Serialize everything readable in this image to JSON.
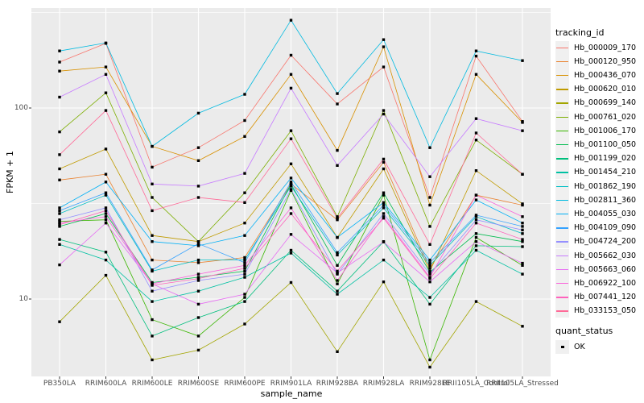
{
  "legend": {
    "tracking_title": "tracking_id",
    "quant_title": "quant_status",
    "quant_value": "OK"
  },
  "colors": {
    "panel_bg": "#ebebeb",
    "grid": "#ffffff",
    "marker": "#000000",
    "tick_text": "#4d4d4d"
  },
  "chart_data": {
    "type": "line",
    "title": "",
    "xlabel": "sample_name",
    "ylabel": "FPKM + 1",
    "y_scale": "log10",
    "y_ticks": [
      {
        "label": "100",
        "value": 100
      },
      {
        "label": "10",
        "value": 10
      }
    ],
    "y_minor_gridlines": [
      316,
      31.6
    ],
    "ylim_log": [
      4.2,
      320
    ],
    "grid": "on",
    "legend_position": "right",
    "point_shape": "filled-black-square",
    "categories": [
      "PB350LA",
      "RRIM600LA",
      "RRIM600LE",
      "RRIM600SE",
      "RRIM600PE",
      "RRIM901LA",
      "RRIM928BA",
      "RRIM928LA",
      "RRIM928LE",
      "RRII105LA_Control",
      "RRII105LA_Stressed"
    ],
    "series": [
      {
        "name": "Hb_000009_170",
        "color": "#F8766D",
        "values": [
          174,
          218,
          49,
          62,
          86,
          189,
          105,
          164,
          34,
          187,
          85
        ]
      },
      {
        "name": "Hb_000120_950",
        "color": "#EA8331",
        "values": [
          42,
          45,
          16,
          15.5,
          16.5,
          40,
          26,
          52,
          14.5,
          35,
          31
        ]
      },
      {
        "name": "Hb_000436_070",
        "color": "#D89000",
        "values": [
          156,
          164,
          63,
          53,
          71,
          150,
          60,
          209,
          31,
          150,
          84
        ]
      },
      {
        "name": "Hb_000620_010",
        "color": "#C09B00",
        "values": [
          48,
          61,
          21.5,
          20,
          25,
          51,
          21,
          48,
          14,
          47,
          31.5
        ]
      },
      {
        "name": "Hb_000699_140",
        "color": "#A3A500",
        "values": [
          7.6,
          13.3,
          4.8,
          5.4,
          7.4,
          12.2,
          5.3,
          12.3,
          4.4,
          9.7,
          7.2
        ]
      },
      {
        "name": "Hb_000761_020",
        "color": "#7CAE00",
        "values": [
          75,
          120,
          34,
          20,
          36,
          76,
          27,
          97,
          24,
          68,
          45
        ]
      },
      {
        "name": "Hb_001006_170",
        "color": "#39B600",
        "values": [
          25.5,
          26,
          7.8,
          6.4,
          10.2,
          37,
          12,
          35,
          4.8,
          21,
          15
        ]
      },
      {
        "name": "Hb_001100_050",
        "color": "#00BB4E",
        "values": [
          24,
          28,
          12.2,
          13,
          14,
          40,
          15,
          36,
          13.8,
          22,
          20
        ]
      },
      {
        "name": "Hb_001199_020",
        "color": "#00BF7D",
        "values": [
          20.5,
          17.6,
          6.4,
          8,
          9.7,
          18,
          11,
          20,
          9.4,
          19,
          18.8
        ]
      },
      {
        "name": "Hb_001454_210",
        "color": "#00C1A3",
        "values": [
          19.3,
          16,
          9.7,
          11,
          13,
          17.4,
          10.6,
          16,
          10.2,
          18,
          13.5
        ]
      },
      {
        "name": "Hb_001862_190",
        "color": "#00BFC4",
        "values": [
          28,
          35,
          14,
          16,
          16,
          39,
          17,
          30,
          15,
          27,
          22
        ]
      },
      {
        "name": "Hb_002811_360",
        "color": "#00BAE0",
        "values": [
          199,
          219,
          63,
          94,
          118,
          288,
          119,
          228,
          62,
          199,
          177
        ]
      },
      {
        "name": "Hb_004055_030",
        "color": "#00B0F6",
        "values": [
          30,
          41,
          20,
          19,
          21.5,
          43,
          21,
          32,
          16,
          33,
          25
        ]
      },
      {
        "name": "Hb_004109_090",
        "color": "#35A2FF",
        "values": [
          29,
          36,
          14.2,
          19.5,
          15.5,
          41,
          17.5,
          31,
          15.5,
          27.5,
          24
        ]
      },
      {
        "name": "Hb_004724_200",
        "color": "#9590FF",
        "values": [
          26,
          30,
          11,
          12.5,
          13.5,
          37.5,
          13.5,
          28,
          13.5,
          26,
          23
        ]
      },
      {
        "name": "Hb_005662_030",
        "color": "#C77CFF",
        "values": [
          114,
          150,
          40,
          39,
          45.5,
          127,
          50,
          93,
          43.7,
          88,
          76
        ]
      },
      {
        "name": "Hb_005663_060",
        "color": "#E76BF3",
        "values": [
          15.1,
          25,
          12,
          9.4,
          10.6,
          21.8,
          13.7,
          19.9,
          12.3,
          20,
          15.4
        ]
      },
      {
        "name": "Hb_006922_100",
        "color": "#FA62DB",
        "values": [
          25,
          27,
          12,
          13.5,
          15,
          30,
          12.5,
          27,
          13,
          35,
          27
        ]
      },
      {
        "name": "Hb_007441_120",
        "color": "#FF62BC",
        "values": [
          24.5,
          29,
          11.8,
          12.8,
          14.5,
          28,
          14,
          26.5,
          12.8,
          25,
          20.5
        ]
      },
      {
        "name": "Hb_033153_050",
        "color": "#FF6A98",
        "values": [
          57,
          97,
          29,
          34,
          32,
          69,
          26.5,
          54,
          19.3,
          74,
          45
        ]
      }
    ]
  }
}
